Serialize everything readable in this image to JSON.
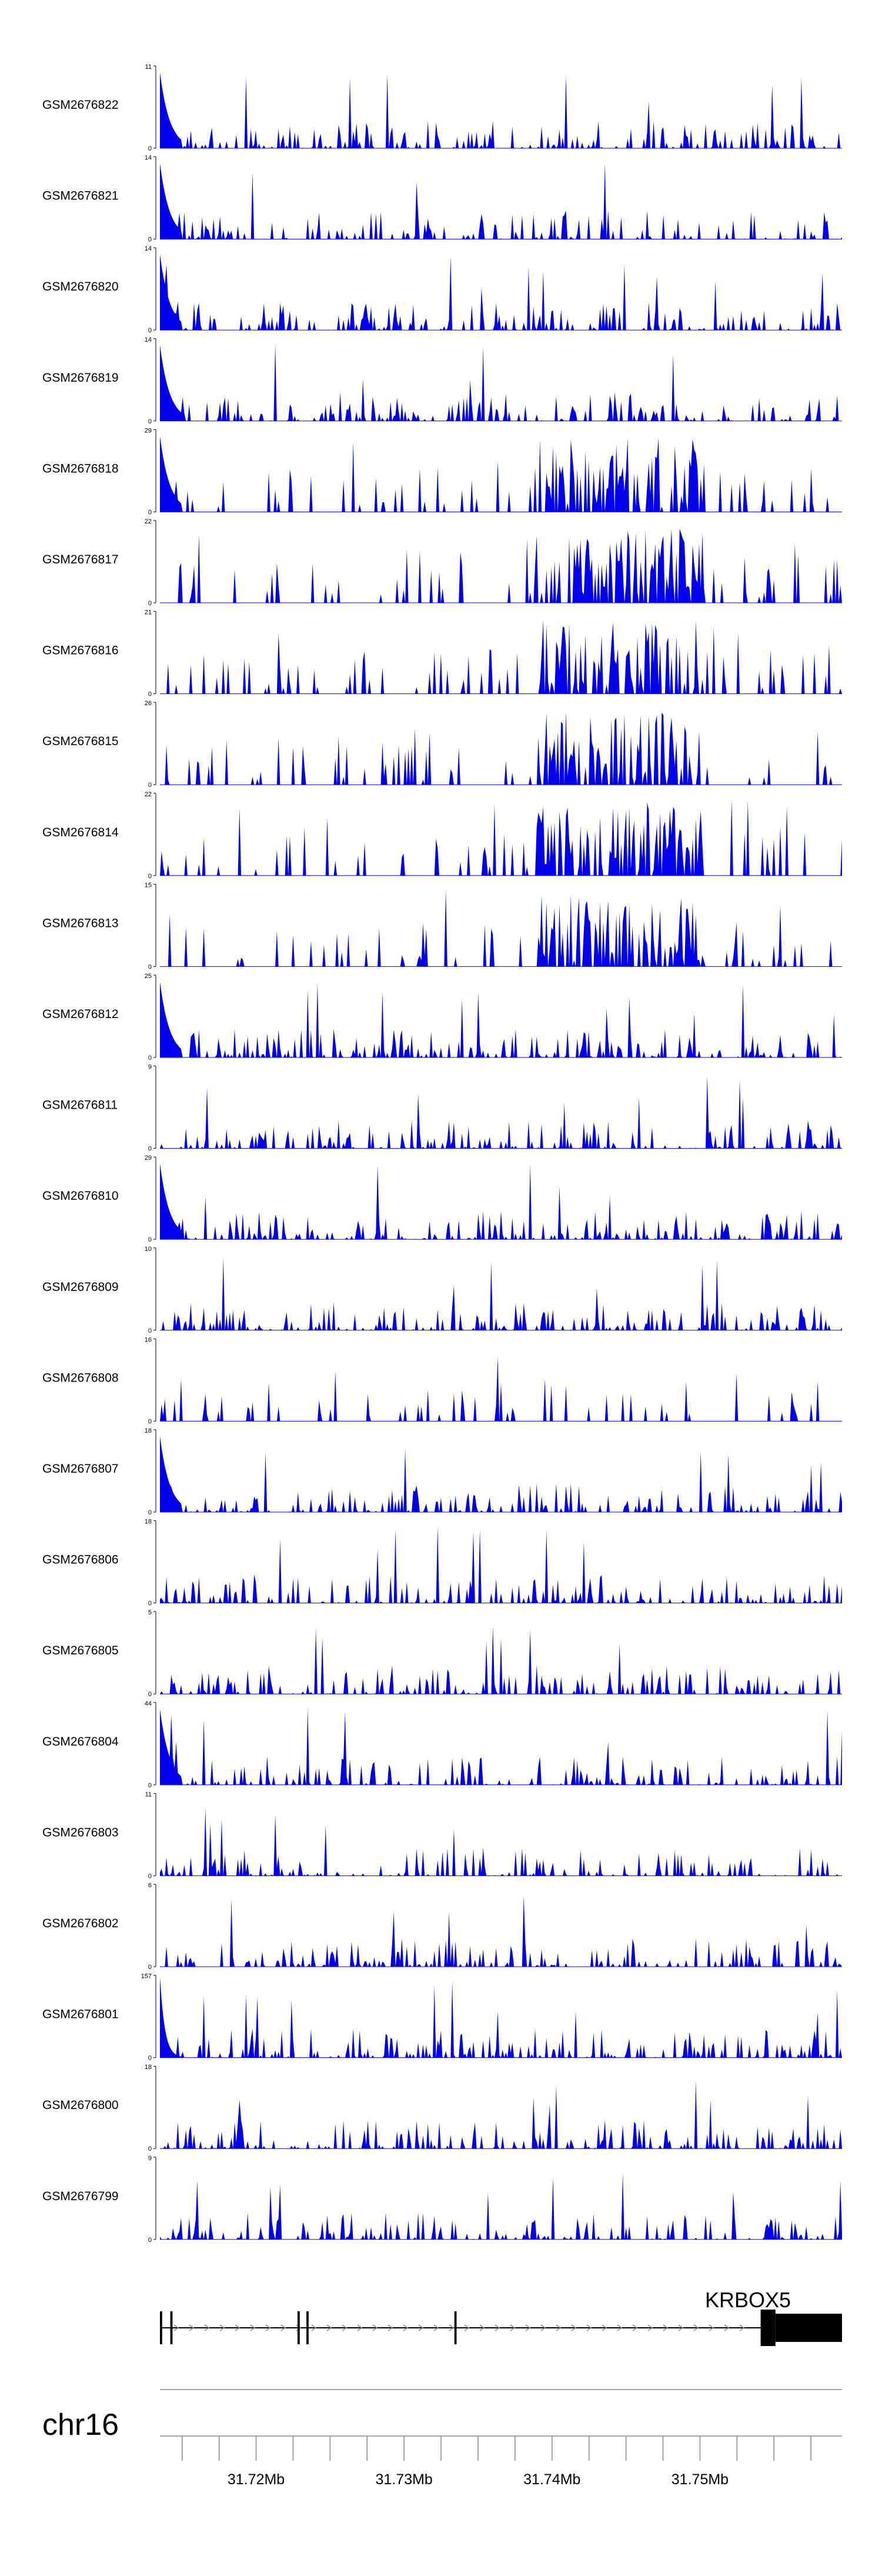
{
  "chart_data": {
    "type": "area",
    "title": "",
    "chromosome": "chr16",
    "x_range_mb": [
      31.7135,
      31.7596
    ],
    "axis_ticks_mb": [
      31.72,
      31.73,
      31.74,
      31.75
    ],
    "axis_tick_labels": [
      "31.72Mb",
      "31.73Mb",
      "31.74Mb",
      "31.75Mb"
    ],
    "colors": {
      "signal": "#0000ee",
      "axis": "#888888",
      "gene": "#000000"
    },
    "tracks": [
      {
        "name": "GSM2676822",
        "ymin": "0",
        "ymax": "11",
        "ymax_value": 11
      },
      {
        "name": "GSM2676821",
        "ymin": "0",
        "ymax": "14",
        "ymax_value": 14
      },
      {
        "name": "GSM2676820",
        "ymin": "0",
        "ymax": "14",
        "ymax_value": 14
      },
      {
        "name": "GSM2676819",
        "ymin": "0",
        "ymax": "14",
        "ymax_value": 14
      },
      {
        "name": "GSM2676818",
        "ymin": "0",
        "ymax": "29",
        "ymax_value": 29
      },
      {
        "name": "GSM2676817",
        "ymin": "0",
        "ymax": "22",
        "ymax_value": 22
      },
      {
        "name": "GSM2676816",
        "ymin": "0",
        "ymax": "21",
        "ymax_value": 21
      },
      {
        "name": "GSM2676815",
        "ymin": "0",
        "ymax": "26",
        "ymax_value": 26
      },
      {
        "name": "GSM2676814",
        "ymin": "0",
        "ymax": "22",
        "ymax_value": 22
      },
      {
        "name": "GSM2676813",
        "ymin": "0",
        "ymax": "15",
        "ymax_value": 15
      },
      {
        "name": "GSM2676812",
        "ymin": "0",
        "ymax": "25",
        "ymax_value": 25
      },
      {
        "name": "GSM2676811",
        "ymin": "0",
        "ymax": "9",
        "ymax_value": 9
      },
      {
        "name": "GSM2676810",
        "ymin": "0",
        "ymax": "29",
        "ymax_value": 29
      },
      {
        "name": "GSM2676809",
        "ymin": "0",
        "ymax": "10",
        "ymax_value": 10
      },
      {
        "name": "GSM2676808",
        "ymin": "0",
        "ymax": "16",
        "ymax_value": 16
      },
      {
        "name": "GSM2676807",
        "ymin": "0",
        "ymax": "18",
        "ymax_value": 18
      },
      {
        "name": "GSM2676806",
        "ymin": "0",
        "ymax": "18",
        "ymax_value": 18
      },
      {
        "name": "GSM2676805",
        "ymin": "0",
        "ymax": "5",
        "ymax_value": 5
      },
      {
        "name": "GSM2676804",
        "ymin": "0",
        "ymax": "44",
        "ymax_value": 44
      },
      {
        "name": "GSM2676803",
        "ymin": "0",
        "ymax": "11",
        "ymax_value": 11
      },
      {
        "name": "GSM2676802",
        "ymin": "0",
        "ymax": "6",
        "ymax_value": 6
      },
      {
        "name": "GSM2676801",
        "ymin": "0",
        "ymax": "157",
        "ymax_value": 157
      },
      {
        "name": "GSM2676800",
        "ymin": "0",
        "ymax": "18",
        "ymax_value": 18
      },
      {
        "name": "GSM2676799",
        "ymin": "0",
        "ymax": "9",
        "ymax_value": 9
      }
    ],
    "gene": {
      "name": "KRBOX5",
      "strand": "+",
      "start_mb": 31.7135,
      "end_mb": 31.7596,
      "exons_mb": [
        [
          31.7135,
          31.71365
        ],
        [
          31.7142,
          31.71435
        ],
        [
          31.7228,
          31.72295
        ],
        [
          31.7234,
          31.72355
        ],
        [
          31.7334,
          31.73355
        ],
        [
          31.7541,
          31.7551
        ],
        [
          31.7551,
          31.7596
        ]
      ]
    }
  }
}
